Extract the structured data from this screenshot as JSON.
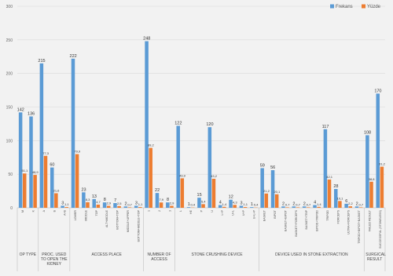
{
  "chart_data": {
    "type": "bar",
    "groups": [
      {
        "label": "OP TYPE",
        "categories": [
          "M",
          "K"
        ]
      },
      {
        "label": "PROC. USED TO OPEN THE KIDNEY",
        "categories": [
          "A",
          "B",
          "A+B"
        ]
      },
      {
        "label": "ACCESS PLACE",
        "categories": [
          "LOWER",
          "MIDDLE",
          "TOP",
          "ALT+MIDDLE",
          "BOTTOM+TOP",
          "MIDDLE+UPPER",
          "BOTTOM+MIDDLE+TOP"
        ]
      },
      {
        "label": "NUMBER OF ACCESS",
        "categories": [
          "1",
          "2",
          "3"
        ]
      },
      {
        "label": "STONE CRUSHING DEVICE",
        "categories": [
          "L",
          "HE",
          "P",
          "U",
          "L+P",
          "U+L",
          "U+P",
          "U+L+P"
        ]
      },
      {
        "label": "DEVICE USED IN STONE EXTRACTION",
        "categories": [
          "BASKET",
          "BIPOT",
          "BASKET+BIPOT",
          "BASKET+FORCEPS",
          "BASKET+TRIP",
          "BIPOD+TRIPOD",
          "TRIPOD",
          "FORCEPS",
          "ULTRA+FORCEPS",
          "TRIPOD+BIPOT+BASKET"
        ]
      },
      {
        "label": "SURGICAL RESULT",
        "categories": [
          "FAILED RESULT",
          "SUCCESSFUL (STONELESS)"
        ]
      }
    ],
    "series": [
      {
        "name": "Frekans",
        "color": "#5b9bd5",
        "values": [
          142,
          136,
          215,
          60,
          3,
          222,
          23,
          13,
          8,
          7,
          2,
          3,
          248,
          22,
          8,
          122,
          1,
          15,
          120,
          4,
          12,
          3,
          1,
          59,
          56,
          2,
          2,
          2,
          4,
          117,
          28,
          6,
          2,
          108,
          170
        ]
      },
      {
        "name": "Yüzde",
        "color": "#ed7d31",
        "values": [
          51.1,
          48.9,
          77.3,
          21.6,
          1.1,
          79.9,
          8.3,
          4.7,
          2.9,
          2.5,
          0.7,
          1.1,
          89.2,
          7.9,
          2.9,
          43.9,
          0.4,
          5.4,
          43.2,
          1.4,
          4.3,
          1.1,
          0.4,
          21.2,
          20.1,
          0.7,
          0.7,
          0.7,
          1.4,
          42.1,
          10.1,
          2.2,
          0.7,
          38.8,
          61.2
        ],
        "value_labels": [
          "51,1",
          "48,9",
          "77,3",
          "21,6",
          "1,1",
          "79,9",
          "8,3",
          "4,7",
          "2,9",
          "2,5",
          "0,7",
          "1,1",
          "89,2",
          "7,9",
          "2,9",
          "43,9",
          "0,4",
          "5,4",
          "43,2",
          "1,4",
          "4,3",
          "1,1",
          "0,4",
          "21,2",
          "20,1",
          "0,7",
          "0,7",
          "0,7",
          "1,4",
          "42,1",
          "10,1",
          "2,2",
          "0,7",
          "38,8",
          "61,2"
        ]
      }
    ],
    "ylim": [
      0,
      300
    ],
    "yticks": [
      0,
      50,
      100,
      150,
      200,
      250,
      300
    ],
    "grid": true,
    "legend": "top-right"
  }
}
